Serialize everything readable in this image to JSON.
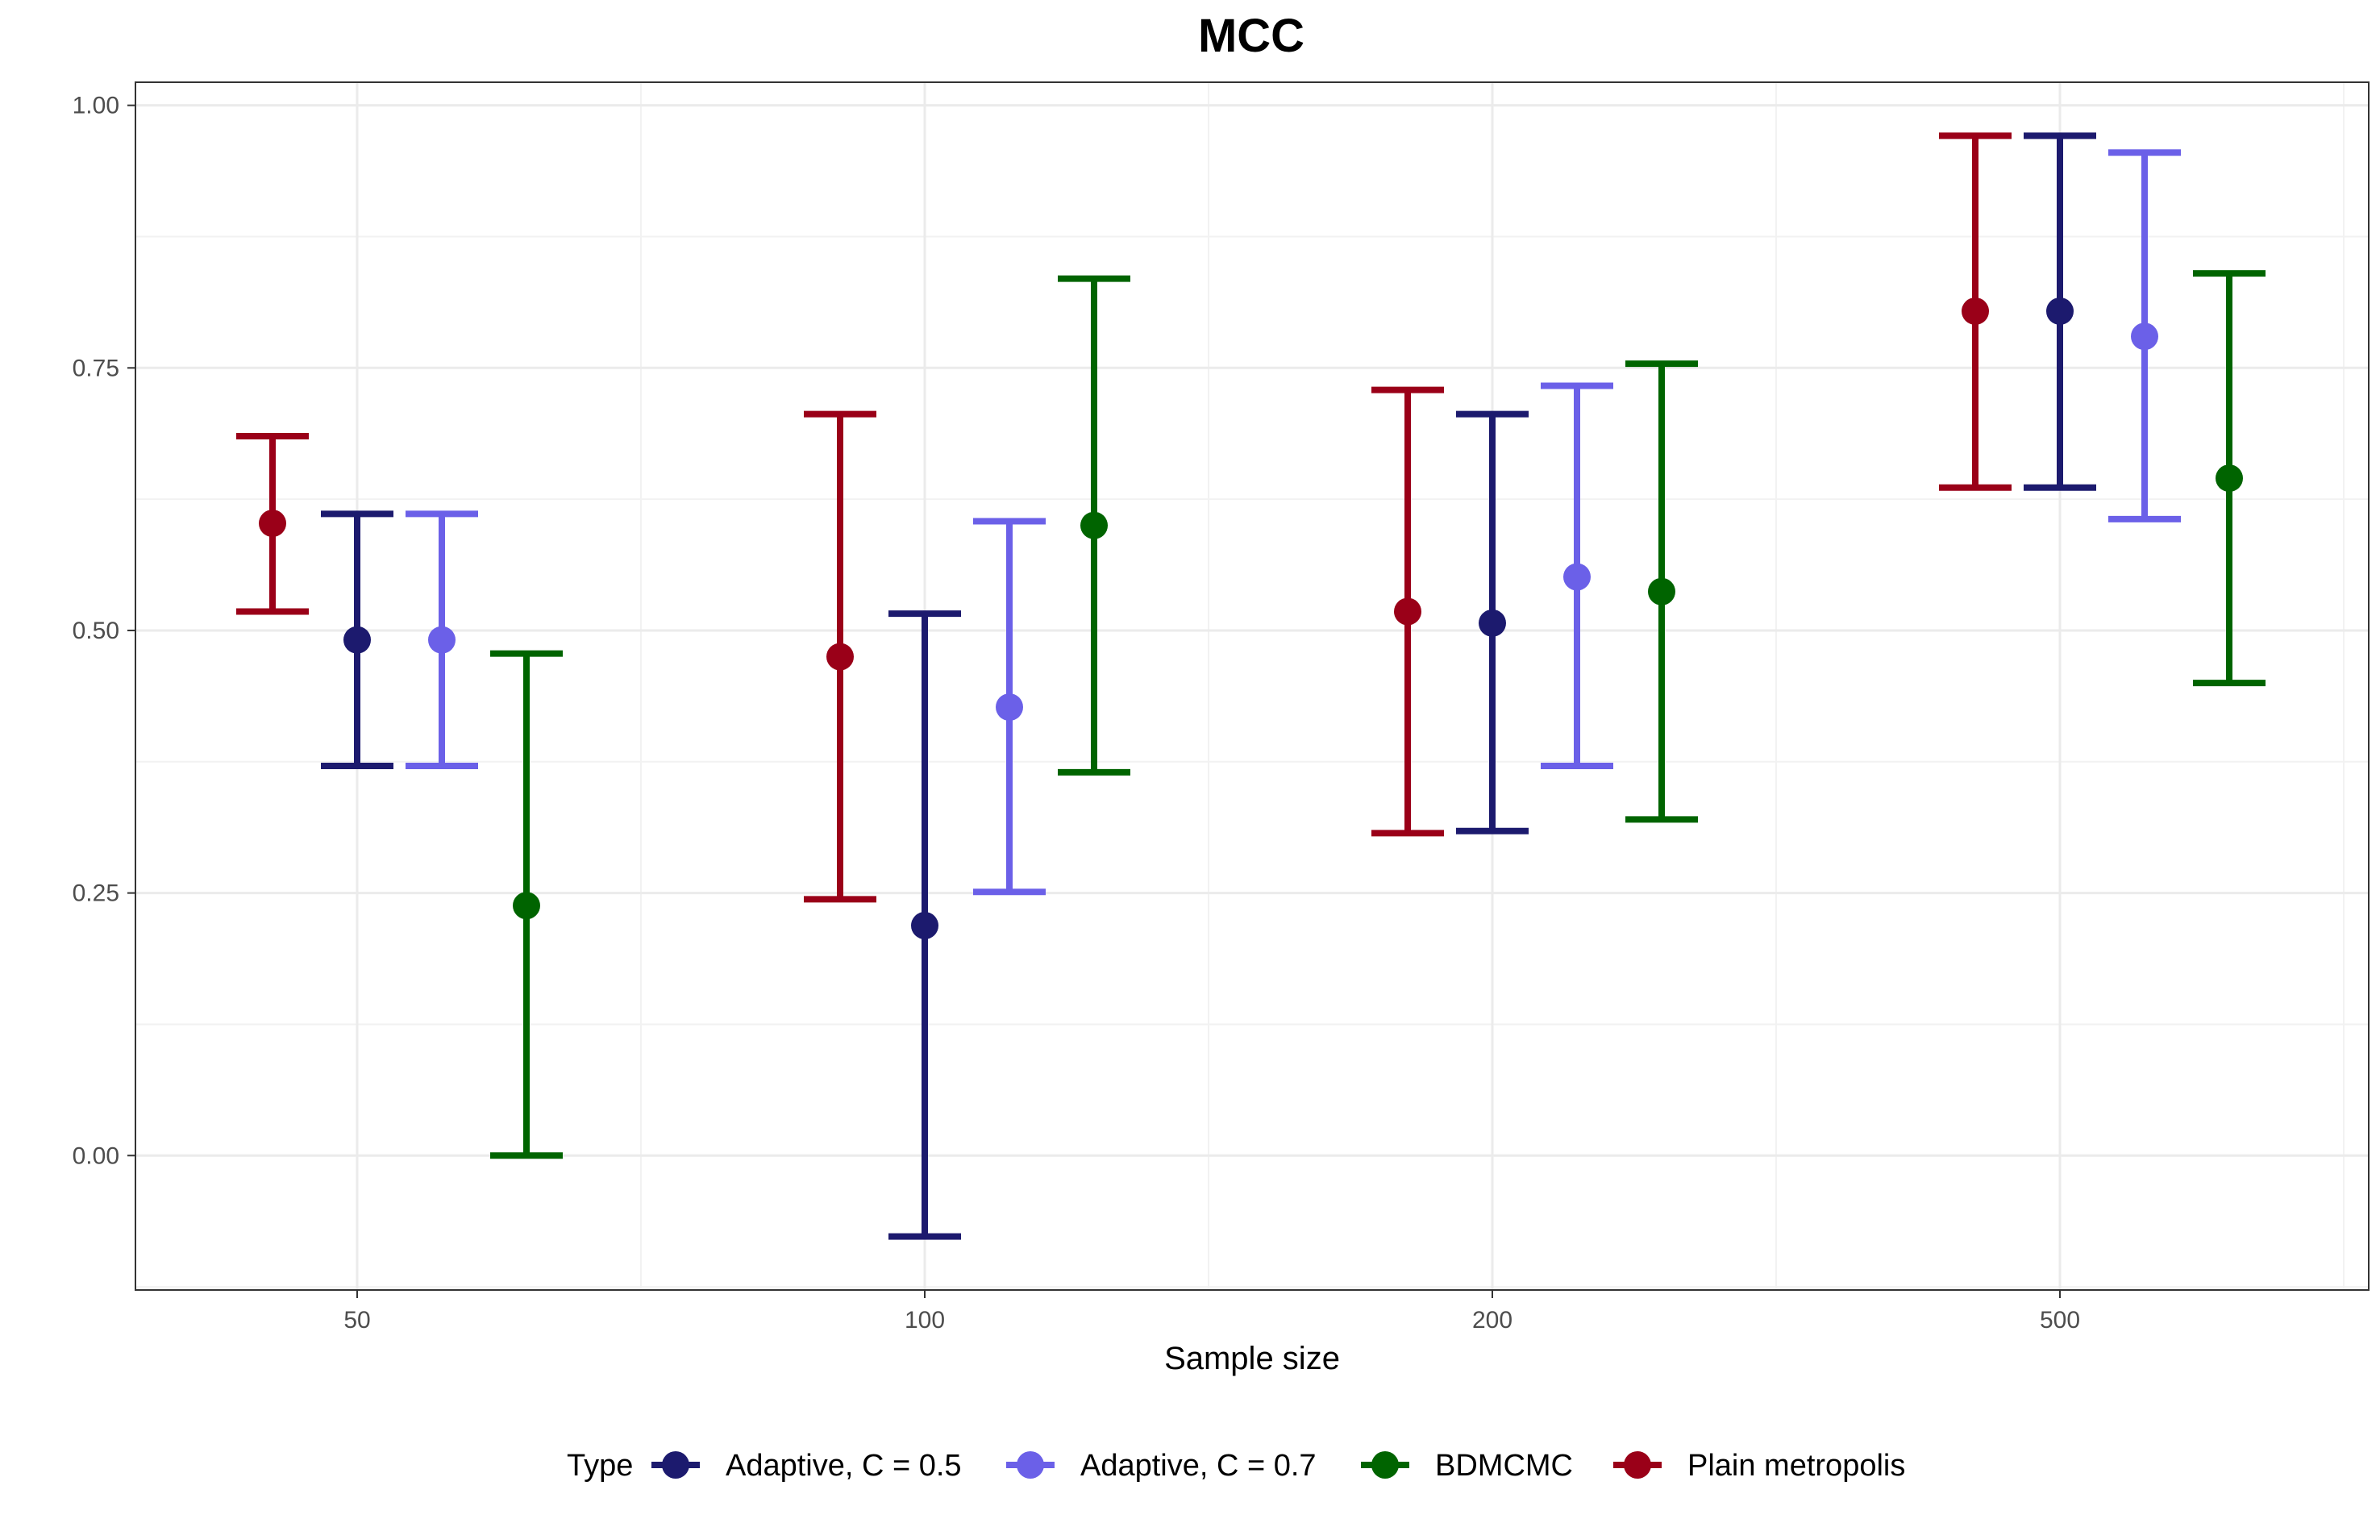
{
  "chart_data": {
    "type": "errorbar",
    "title": "MCC",
    "xlabel": "Sample size",
    "ylabel": "",
    "categories": [
      "50",
      "100",
      "200",
      "500"
    ],
    "ylim": [
      -0.128,
      1.022
    ],
    "yticks": [
      0.0,
      0.25,
      0.5,
      0.75,
      1.0
    ],
    "ytick_labels": [
      "0.00",
      "0.25",
      "0.50",
      "0.75",
      "1.00"
    ],
    "grid": true,
    "legend": {
      "title": "Type",
      "position": "bottom"
    },
    "series": [
      {
        "name": "Plain metropolis",
        "color": "#9a0018",
        "values": [
          0.602,
          0.475,
          0.518,
          0.804
        ],
        "lower": [
          0.518,
          0.244,
          0.307,
          0.636
        ],
        "upper": [
          0.685,
          0.706,
          0.729,
          0.971
        ]
      },
      {
        "name": "Adaptive, C = 0.5",
        "color": "#1c1a6e",
        "values": [
          0.491,
          0.219,
          0.507,
          0.804
        ],
        "lower": [
          0.371,
          -0.077,
          0.309,
          0.636
        ],
        "upper": [
          0.611,
          0.516,
          0.706,
          0.971
        ]
      },
      {
        "name": "Adaptive, C = 0.7",
        "color": "#6b60e8",
        "values": [
          0.491,
          0.427,
          0.551,
          0.78
        ],
        "lower": [
          0.371,
          0.251,
          0.371,
          0.606
        ],
        "upper": [
          0.611,
          0.604,
          0.733,
          0.955
        ]
      },
      {
        "name": "BDMCMC",
        "color": "#006400",
        "values": [
          0.238,
          0.6,
          0.537,
          0.645
        ],
        "lower": [
          0.0,
          0.365,
          0.32,
          0.45
        ],
        "upper": [
          0.478,
          0.835,
          0.754,
          0.84
        ]
      }
    ],
    "legend_order": [
      "Adaptive, C = 0.5",
      "Adaptive, C = 0.7",
      "BDMCMC",
      "Plain metropolis"
    ]
  }
}
